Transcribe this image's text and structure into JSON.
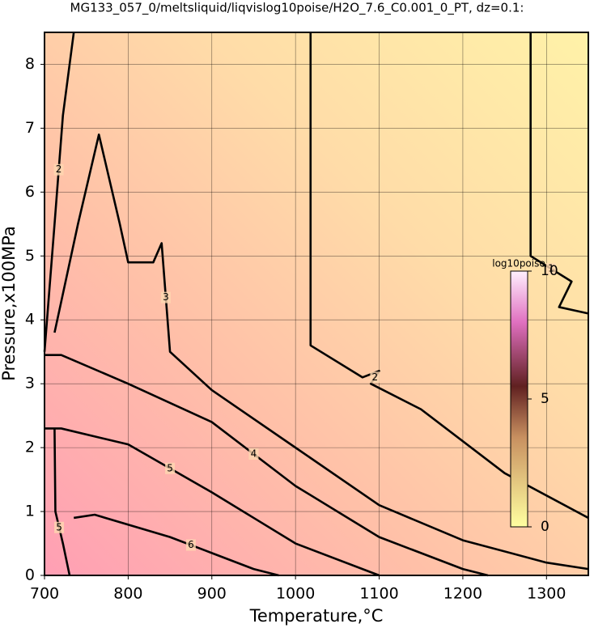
{
  "chart_data": {
    "type": "contour",
    "title": "MG133_057_0/meltsliquid/liqvislog10poise/H2O_7.6_C0.001_0_PT, dz=0.1:",
    "x_label": "Temperature,°C",
    "y_label": "Pressure,x100MPa",
    "xlim": [
      700,
      1350
    ],
    "xticks": [
      700,
      800,
      900,
      1000,
      1100,
      1200,
      1300
    ],
    "ylim": [
      0,
      8.5
    ],
    "yticks": [
      0,
      1,
      2,
      3,
      4,
      5,
      6,
      7,
      8
    ],
    "grid": true,
    "contours": [
      {
        "level": 1,
        "x": [
          1281,
          1281,
          1330,
          1315,
          1350
        ],
        "y": [
          8.5,
          5.0,
          4.6,
          4.2,
          4.1
        ]
      },
      {
        "level": 2,
        "x": [
          1018,
          1018,
          1080,
          1100,
          1090,
          1150,
          1250,
          1350
        ],
        "y": [
          8.5,
          3.6,
          3.1,
          3.2,
          3.0,
          2.6,
          1.6,
          0.9
        ]
      },
      {
        "level": 2,
        "x": [
          700,
          712,
          722,
          735
        ],
        "y": [
          3.5,
          5.5,
          7.2,
          8.5
        ]
      },
      {
        "level": 3,
        "x": [
          712,
          740,
          765,
          790,
          800,
          830,
          840,
          850,
          900,
          1000,
          1100,
          1200,
          1300,
          1350
        ],
        "y": [
          3.8,
          5.5,
          6.9,
          5.5,
          4.9,
          4.9,
          5.2,
          3.5,
          2.9,
          2.0,
          1.1,
          0.55,
          0.2,
          0.1
        ]
      },
      {
        "level": 4,
        "x": [
          700,
          720,
          800,
          900,
          1000,
          1100,
          1200,
          1230
        ],
        "y": [
          3.45,
          3.45,
          3.0,
          2.4,
          1.4,
          0.6,
          0.1,
          0
        ]
      },
      {
        "level": 5,
        "x": [
          700,
          720,
          800,
          900,
          950,
          1000,
          1100
        ],
        "y": [
          2.3,
          2.3,
          2.05,
          1.3,
          0.9,
          0.5,
          0
        ]
      },
      {
        "level": 5,
        "x": [
          712,
          713,
          722,
          730
        ],
        "y": [
          2.3,
          1.0,
          0.5,
          0
        ]
      },
      {
        "level": 6,
        "x": [
          735,
          760,
          850,
          900,
          950,
          980
        ],
        "y": [
          0.9,
          0.95,
          0.6,
          0.35,
          0.1,
          0
        ]
      }
    ],
    "colorbar": {
      "label": "log10poise",
      "lim": [
        0,
        10
      ],
      "ticks": [
        0,
        5,
        10
      ]
    }
  }
}
